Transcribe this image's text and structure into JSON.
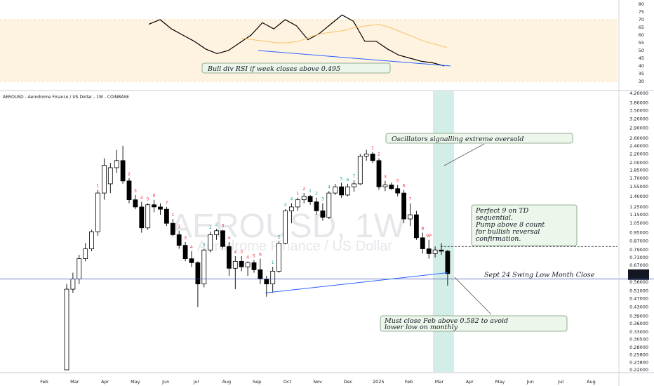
{
  "symbol_title": "AEROUSD - Aerodrome Finance / US Dollar - 1W - COINBASE",
  "watermark": {
    "ticker": "AEROUSD, 1W",
    "name": "Aerodrome Finance / US Dollar"
  },
  "colors": {
    "up": "#ffffff",
    "down": "#000000",
    "highlight": "#26a69a",
    "rsi_band": "#fde9c4",
    "trend": "#2962ff",
    "seq_up": "#26a69a",
    "seq_down": "#f23645"
  },
  "chart_data": [
    {
      "type": "line",
      "title": "",
      "series": [
        {
          "values": [
            67,
            70,
            64,
            60,
            56,
            51,
            48,
            50,
            55,
            60,
            68,
            64,
            70,
            66,
            57,
            61,
            67,
            73,
            69,
            56,
            56,
            51,
            47,
            45,
            43,
            42,
            40
          ]
        },
        {
          "values": [
            58,
            57,
            56,
            55,
            55,
            56,
            59,
            61,
            62,
            63,
            65,
            66,
            67,
            65,
            62,
            59,
            56,
            54,
            52
          ]
        }
      ],
      "ylim": [
        30,
        80
      ],
      "y_ticks": [
        "80",
        "75",
        "70",
        "65",
        "60",
        "55",
        "50",
        "45",
        "40",
        "35",
        "30"
      ],
      "band": [
        30,
        70
      ]
    },
    {
      "type": "candlestick",
      "title": "AEROUSD - Aerodrome Finance / US Dollar - 1W - COINBASE",
      "scale": "log",
      "ylim": [
        0.22,
        4.2
      ],
      "y_ticks": [
        "4.20000",
        "3.80000",
        "3.50000",
        "3.20000",
        "2.90000",
        "2.60000",
        "2.40000",
        "2.20000",
        "2.00000",
        "1.85000",
        "1.70000",
        "1.55000",
        "1.40000",
        "1.25000",
        "1.15000",
        "1.05000",
        "0.95000",
        "0.87000",
        "0.79000",
        "0.73000",
        "0.67000",
        "0.61433",
        "0.56000",
        "0.51000",
        "0.47000",
        "0.43000",
        "0.39000",
        "0.36000",
        "0.33000",
        "0.30500",
        "0.28000",
        "0.25800",
        "0.23800",
        "0.22000"
      ],
      "price_marker": {
        "value": "0.61433",
        "sub": "2d 9h"
      },
      "x_ticks": [
        "Feb",
        "Mar",
        "Apr",
        "May",
        "Jun",
        "Jul",
        "Aug",
        "Sep",
        "Oct",
        "Nov",
        "Dec",
        "2025",
        "Feb",
        "Mar",
        "Apr",
        "May",
        "Jun",
        "Jul",
        "Aug"
      ],
      "candles": [
        {
          "o": 0.22,
          "h": 0.55,
          "l": 0.22,
          "c": 0.52
        },
        {
          "o": 0.52,
          "h": 0.62,
          "l": 0.5,
          "c": 0.58
        },
        {
          "o": 0.58,
          "h": 0.75,
          "l": 0.55,
          "c": 0.72
        },
        {
          "o": 0.72,
          "h": 0.85,
          "l": 0.7,
          "c": 0.8
        },
        {
          "o": 0.8,
          "h": 0.98,
          "l": 0.78,
          "c": 0.96
        },
        {
          "o": 0.96,
          "h": 1.5,
          "l": 0.92,
          "c": 1.45
        },
        {
          "o": 1.45,
          "h": 2.1,
          "l": 1.35,
          "c": 1.95
        },
        {
          "o": 1.6,
          "h": 2.0,
          "l": 1.45,
          "c": 1.9
        },
        {
          "o": 1.9,
          "h": 2.3,
          "l": 1.8,
          "c": 2.05
        },
        {
          "o": 2.05,
          "h": 2.4,
          "l": 1.6,
          "c": 1.65
        },
        {
          "o": 1.65,
          "h": 1.7,
          "l": 1.3,
          "c": 1.35
        },
        {
          "o": 1.35,
          "h": 1.42,
          "l": 1.22,
          "c": 1.25
        },
        {
          "o": 1.25,
          "h": 1.32,
          "l": 0.95,
          "c": 1.0
        },
        {
          "o": 1.0,
          "h": 1.3,
          "l": 0.98,
          "c": 1.28
        },
        {
          "o": 1.28,
          "h": 1.35,
          "l": 1.18,
          "c": 1.25
        },
        {
          "o": 1.25,
          "h": 1.3,
          "l": 1.15,
          "c": 1.22
        },
        {
          "o": 1.22,
          "h": 1.25,
          "l": 1.02,
          "c": 1.05
        },
        {
          "o": 1.05,
          "h": 1.1,
          "l": 0.92,
          "c": 0.93
        },
        {
          "o": 0.93,
          "h": 0.97,
          "l": 0.8,
          "c": 0.83
        },
        {
          "o": 0.83,
          "h": 0.86,
          "l": 0.7,
          "c": 0.72
        },
        {
          "o": 0.72,
          "h": 0.78,
          "l": 0.66,
          "c": 0.69
        },
        {
          "o": 0.69,
          "h": 0.7,
          "l": 0.43,
          "c": 0.55
        },
        {
          "o": 0.55,
          "h": 0.8,
          "l": 0.53,
          "c": 0.79
        },
        {
          "o": 0.79,
          "h": 0.96,
          "l": 0.77,
          "c": 0.93
        },
        {
          "o": 0.93,
          "h": 0.99,
          "l": 0.88,
          "c": 0.97
        },
        {
          "o": 0.97,
          "h": 0.98,
          "l": 0.8,
          "c": 0.82
        },
        {
          "o": 0.82,
          "h": 0.86,
          "l": 0.6,
          "c": 0.65
        },
        {
          "o": 0.65,
          "h": 0.74,
          "l": 0.52,
          "c": 0.7
        },
        {
          "o": 0.7,
          "h": 0.74,
          "l": 0.63,
          "c": 0.66
        },
        {
          "o": 0.66,
          "h": 0.7,
          "l": 0.6,
          "c": 0.69
        },
        {
          "o": 0.69,
          "h": 0.71,
          "l": 0.62,
          "c": 0.64
        },
        {
          "o": 0.64,
          "h": 0.72,
          "l": 0.55,
          "c": 0.58
        },
        {
          "o": 0.58,
          "h": 0.6,
          "l": 0.48,
          "c": 0.55
        },
        {
          "o": 0.55,
          "h": 0.66,
          "l": 0.5,
          "c": 0.63
        },
        {
          "o": 0.63,
          "h": 0.87,
          "l": 0.62,
          "c": 0.85
        },
        {
          "o": 0.85,
          "h": 1.22,
          "l": 0.84,
          "c": 1.2
        },
        {
          "o": 1.2,
          "h": 1.3,
          "l": 1.05,
          "c": 1.25
        },
        {
          "o": 1.25,
          "h": 1.38,
          "l": 1.2,
          "c": 1.35
        },
        {
          "o": 1.35,
          "h": 1.45,
          "l": 1.3,
          "c": 1.4
        },
        {
          "o": 1.4,
          "h": 1.42,
          "l": 1.28,
          "c": 1.32
        },
        {
          "o": 1.32,
          "h": 1.38,
          "l": 1.15,
          "c": 1.2
        },
        {
          "o": 1.2,
          "h": 1.3,
          "l": 1.08,
          "c": 1.12
        },
        {
          "o": 1.12,
          "h": 1.48,
          "l": 1.1,
          "c": 1.45
        },
        {
          "o": 1.45,
          "h": 1.6,
          "l": 1.42,
          "c": 1.55
        },
        {
          "o": 1.55,
          "h": 1.62,
          "l": 1.38,
          "c": 1.42
        },
        {
          "o": 1.42,
          "h": 1.6,
          "l": 1.4,
          "c": 1.55
        },
        {
          "o": 1.55,
          "h": 1.66,
          "l": 1.47,
          "c": 1.6
        },
        {
          "o": 1.6,
          "h": 2.2,
          "l": 1.58,
          "c": 2.15
        },
        {
          "o": 2.15,
          "h": 2.3,
          "l": 2.05,
          "c": 2.2
        },
        {
          "o": 2.2,
          "h": 2.25,
          "l": 2.0,
          "c": 2.05
        },
        {
          "o": 2.05,
          "h": 2.1,
          "l": 1.5,
          "c": 1.55
        },
        {
          "o": 1.55,
          "h": 1.65,
          "l": 1.48,
          "c": 1.58
        },
        {
          "o": 1.58,
          "h": 1.62,
          "l": 1.5,
          "c": 1.52
        },
        {
          "o": 1.52,
          "h": 1.58,
          "l": 1.4,
          "c": 1.45
        },
        {
          "o": 1.45,
          "h": 1.5,
          "l": 1.05,
          "c": 1.1
        },
        {
          "o": 1.1,
          "h": 1.3,
          "l": 1.02,
          "c": 1.15
        },
        {
          "o": 1.15,
          "h": 1.2,
          "l": 0.88,
          "c": 0.9
        },
        {
          "o": 0.9,
          "h": 0.95,
          "l": 0.76,
          "c": 0.8
        },
        {
          "o": 0.8,
          "h": 0.88,
          "l": 0.72,
          "c": 0.76
        },
        {
          "o": 0.76,
          "h": 0.82,
          "l": 0.73,
          "c": 0.79
        },
        {
          "o": 0.79,
          "h": 0.85,
          "l": 0.75,
          "c": 0.78
        },
        {
          "o": 0.78,
          "h": 0.79,
          "l": 0.54,
          "c": 0.61433
        }
      ],
      "sequential_labels": [
        {
          "i": 5,
          "text": "1",
          "dir": "down"
        },
        {
          "i": 10,
          "text": "2",
          "dir": "down"
        },
        {
          "i": 11,
          "text": "3",
          "dir": "down"
        },
        {
          "i": 12,
          "text": "4",
          "dir": "down"
        },
        {
          "i": 13,
          "text": "5",
          "dir": "down"
        },
        {
          "i": 14,
          "text": "6",
          "dir": "down"
        },
        {
          "i": 16,
          "text": "7",
          "dir": "down"
        },
        {
          "i": 17,
          "text": "1",
          "dir": "down"
        },
        {
          "i": 18,
          "text": "2",
          "dir": "down"
        },
        {
          "i": 19,
          "text": "3",
          "dir": "down"
        },
        {
          "i": 20,
          "text": "4",
          "dir": "down"
        },
        {
          "i": 22,
          "text": "5",
          "dir": "up"
        },
        {
          "i": 23,
          "text": "1",
          "dir": "up"
        },
        {
          "i": 24,
          "text": "2",
          "dir": "up"
        },
        {
          "i": 25,
          "text": "3",
          "dir": "down"
        },
        {
          "i": 26,
          "text": "4",
          "dir": "down"
        },
        {
          "i": 27,
          "text": "4",
          "dir": "down"
        },
        {
          "i": 28,
          "text": "3",
          "dir": "down"
        },
        {
          "i": 29,
          "text": "4",
          "dir": "down"
        },
        {
          "i": 30,
          "text": "5",
          "dir": "down"
        },
        {
          "i": 31,
          "text": "6",
          "dir": "down"
        },
        {
          "i": 33,
          "text": "1",
          "dir": "up"
        },
        {
          "i": 34,
          "text": "2",
          "dir": "up"
        },
        {
          "i": 35,
          "text": "3",
          "dir": "up"
        },
        {
          "i": 36,
          "text": "4",
          "dir": "up"
        },
        {
          "i": 37,
          "text": "1",
          "dir": "down"
        },
        {
          "i": 38,
          "text": "2",
          "dir": "down"
        },
        {
          "i": 39,
          "text": "1",
          "dir": "up"
        },
        {
          "i": 40,
          "text": "2",
          "dir": "up"
        },
        {
          "i": 41,
          "text": "3",
          "dir": "up"
        },
        {
          "i": 42,
          "text": "4",
          "dir": "up"
        },
        {
          "i": 44,
          "text": "5",
          "dir": "up"
        },
        {
          "i": 45,
          "text": "6",
          "dir": "up"
        },
        {
          "i": 46,
          "text": "7",
          "dir": "up"
        },
        {
          "i": 49,
          "text": "1",
          "dir": "down"
        },
        {
          "i": 50,
          "text": "2",
          "dir": "down"
        },
        {
          "i": 51,
          "text": "3",
          "dir": "down"
        },
        {
          "i": 53,
          "text": "5",
          "dir": "down"
        },
        {
          "i": 54,
          "text": "6",
          "dir": "down"
        },
        {
          "i": 55,
          "text": "7",
          "dir": "down"
        },
        {
          "i": 57,
          "text": "8",
          "dir": "down"
        },
        {
          "i": 58,
          "text": "9P",
          "dir": "down"
        }
      ],
      "annotations": {
        "oscillators": "Oscillators signalling extreme oversold",
        "perfect9_a": "Perfect 9 on TD",
        "perfect9_b": "sequential.",
        "pump_a": "Pump above 8 count",
        "pump_b": "for bullish reversal",
        "pump_c": "confirmation.",
        "must_close_a": "Must close Feb above 0.582 to avoid",
        "must_close_b": "lower low on monthly",
        "swing_low": "Sept 24 Swing Low Month Close",
        "bull_div": "Bull div RSI if week closes above 0.495"
      }
    }
  ]
}
